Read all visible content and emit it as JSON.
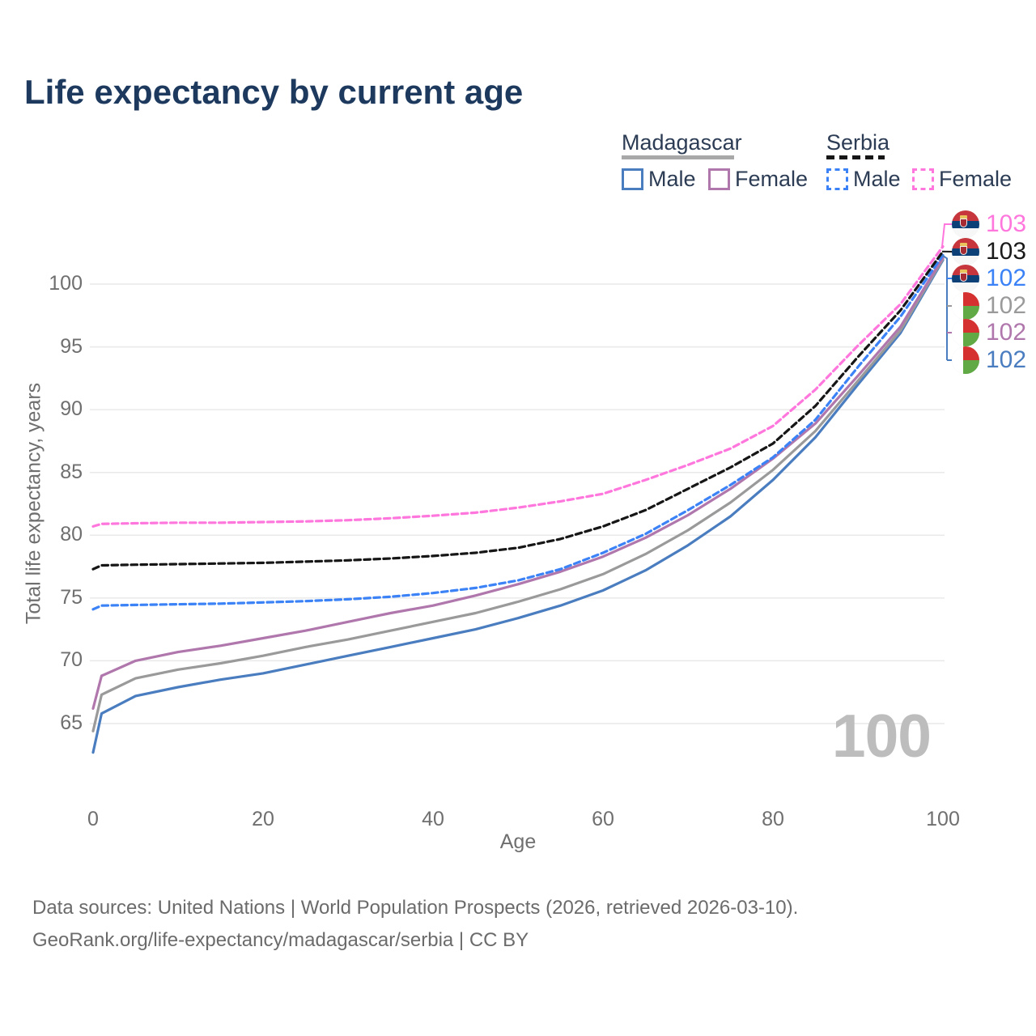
{
  "title": "Life expectancy by current age",
  "legend": {
    "groups": [
      {
        "label": "Madagascar",
        "line_style": "solid",
        "underline_color": "#a8a8a8",
        "items": [
          {
            "label": "Male",
            "color": "#4a7dbf"
          },
          {
            "label": "Female",
            "color": "#b077ad"
          }
        ]
      },
      {
        "label": "Serbia",
        "line_style": "dashed",
        "underline_color": "#161616",
        "items": [
          {
            "label": "Male",
            "color": "#3b82f6"
          },
          {
            "label": "Female",
            "color": "#ff77dd"
          }
        ]
      }
    ]
  },
  "chart_data": {
    "type": "line",
    "title": "Life expectancy by current age",
    "xlabel": "Age",
    "ylabel": "Total life expectancy, years",
    "xlim": [
      0,
      100
    ],
    "ylim": [
      65,
      100
    ],
    "grid": "horizontal",
    "x_ticks": [
      "0",
      "20",
      "40",
      "60",
      "80",
      "100"
    ],
    "y_ticks": [
      "65",
      "70",
      "75",
      "80",
      "85",
      "90",
      "95",
      "100"
    ],
    "y_grid": [
      65,
      70,
      75,
      80,
      85,
      90,
      95,
      100
    ],
    "x": [
      0,
      1,
      5,
      10,
      15,
      20,
      25,
      30,
      35,
      40,
      45,
      50,
      55,
      60,
      65,
      70,
      75,
      80,
      85,
      90,
      95,
      100
    ],
    "series": [
      {
        "name": "Madagascar — Male",
        "country": "Madagascar",
        "sex": "male",
        "style": "solid",
        "color": "#4a7dbf",
        "values": [
          62.7,
          65.8,
          67.2,
          67.9,
          68.5,
          69.0,
          69.7,
          70.4,
          71.1,
          71.8,
          72.5,
          73.4,
          74.4,
          75.6,
          77.2,
          79.2,
          81.5,
          84.4,
          87.8,
          92.0,
          96.1,
          101.9
        ]
      },
      {
        "name": "Madagascar — All",
        "country": "Madagascar",
        "sex": "all",
        "style": "solid",
        "color": "#9a9a9a",
        "values": [
          64.4,
          67.3,
          68.6,
          69.3,
          69.8,
          70.4,
          71.1,
          71.7,
          72.4,
          73.1,
          73.8,
          74.7,
          75.7,
          76.9,
          78.5,
          80.4,
          82.6,
          85.2,
          88.3,
          92.3,
          96.3,
          102.0
        ]
      },
      {
        "name": "Madagascar — Female",
        "country": "Madagascar",
        "sex": "female",
        "style": "solid",
        "color": "#b077ad",
        "values": [
          66.2,
          68.8,
          70.0,
          70.7,
          71.2,
          71.8,
          72.4,
          73.1,
          73.8,
          74.4,
          75.2,
          76.1,
          77.1,
          78.3,
          79.8,
          81.6,
          83.7,
          86.1,
          88.9,
          92.7,
          96.6,
          102.1
        ]
      },
      {
        "name": "Serbia — Male",
        "country": "Serbia",
        "sex": "male",
        "style": "dashed",
        "color": "#3b82f6",
        "values": [
          74.1,
          74.4,
          74.45,
          74.5,
          74.55,
          74.65,
          74.75,
          74.9,
          75.1,
          75.4,
          75.8,
          76.4,
          77.3,
          78.6,
          80.1,
          82.0,
          84.0,
          86.2,
          89.2,
          93.4,
          97.4,
          102.3
        ]
      },
      {
        "name": "Serbia — All",
        "country": "Serbia",
        "sex": "all",
        "style": "dashed",
        "color": "#161616",
        "values": [
          77.3,
          77.6,
          77.65,
          77.7,
          77.75,
          77.8,
          77.9,
          78.0,
          78.15,
          78.35,
          78.6,
          79.0,
          79.7,
          80.7,
          82.0,
          83.7,
          85.4,
          87.3,
          90.3,
          94.2,
          97.9,
          102.6
        ]
      },
      {
        "name": "Serbia — Female",
        "country": "Serbia",
        "sex": "female",
        "style": "dashed",
        "color": "#ff77dd",
        "values": [
          80.7,
          80.9,
          80.95,
          81.0,
          81.0,
          81.05,
          81.1,
          81.2,
          81.35,
          81.55,
          81.8,
          82.2,
          82.7,
          83.3,
          84.4,
          85.6,
          86.9,
          88.7,
          91.6,
          95.1,
          98.4,
          103.0
        ]
      }
    ]
  },
  "end_labels": [
    {
      "series": "Serbia — Female",
      "value": "103",
      "color": "#ff77dd",
      "flag": "serbia"
    },
    {
      "series": "Serbia — All",
      "value": "103",
      "color": "#1a1a1a",
      "flag": "serbia"
    },
    {
      "series": "Serbia — Male",
      "value": "102",
      "color": "#3b82f6",
      "flag": "serbia"
    },
    {
      "series": "Madagascar — All",
      "value": "102",
      "color": "#9a9a9a",
      "flag": "madagascar"
    },
    {
      "series": "Madagascar — Female",
      "value": "102",
      "color": "#b077ad",
      "flag": "madagascar"
    },
    {
      "series": "Madagascar — Male",
      "value": "102",
      "color": "#4a7dbf",
      "flag": "madagascar"
    }
  ],
  "watermark": "100",
  "colors": {
    "grid": "#e9e9e9",
    "title": "#1d3a5e",
    "axis_text": "#6f6f6f",
    "watermark": "#bdbdbd",
    "footer_text": "#6b6b6b"
  },
  "footer": {
    "line1": "Data sources: United Nations | World Population Prospects (2026, retrieved 2026-03-10).",
    "line2": "GeoRank.org/life-expectancy/madagascar/serbia | CC BY"
  }
}
